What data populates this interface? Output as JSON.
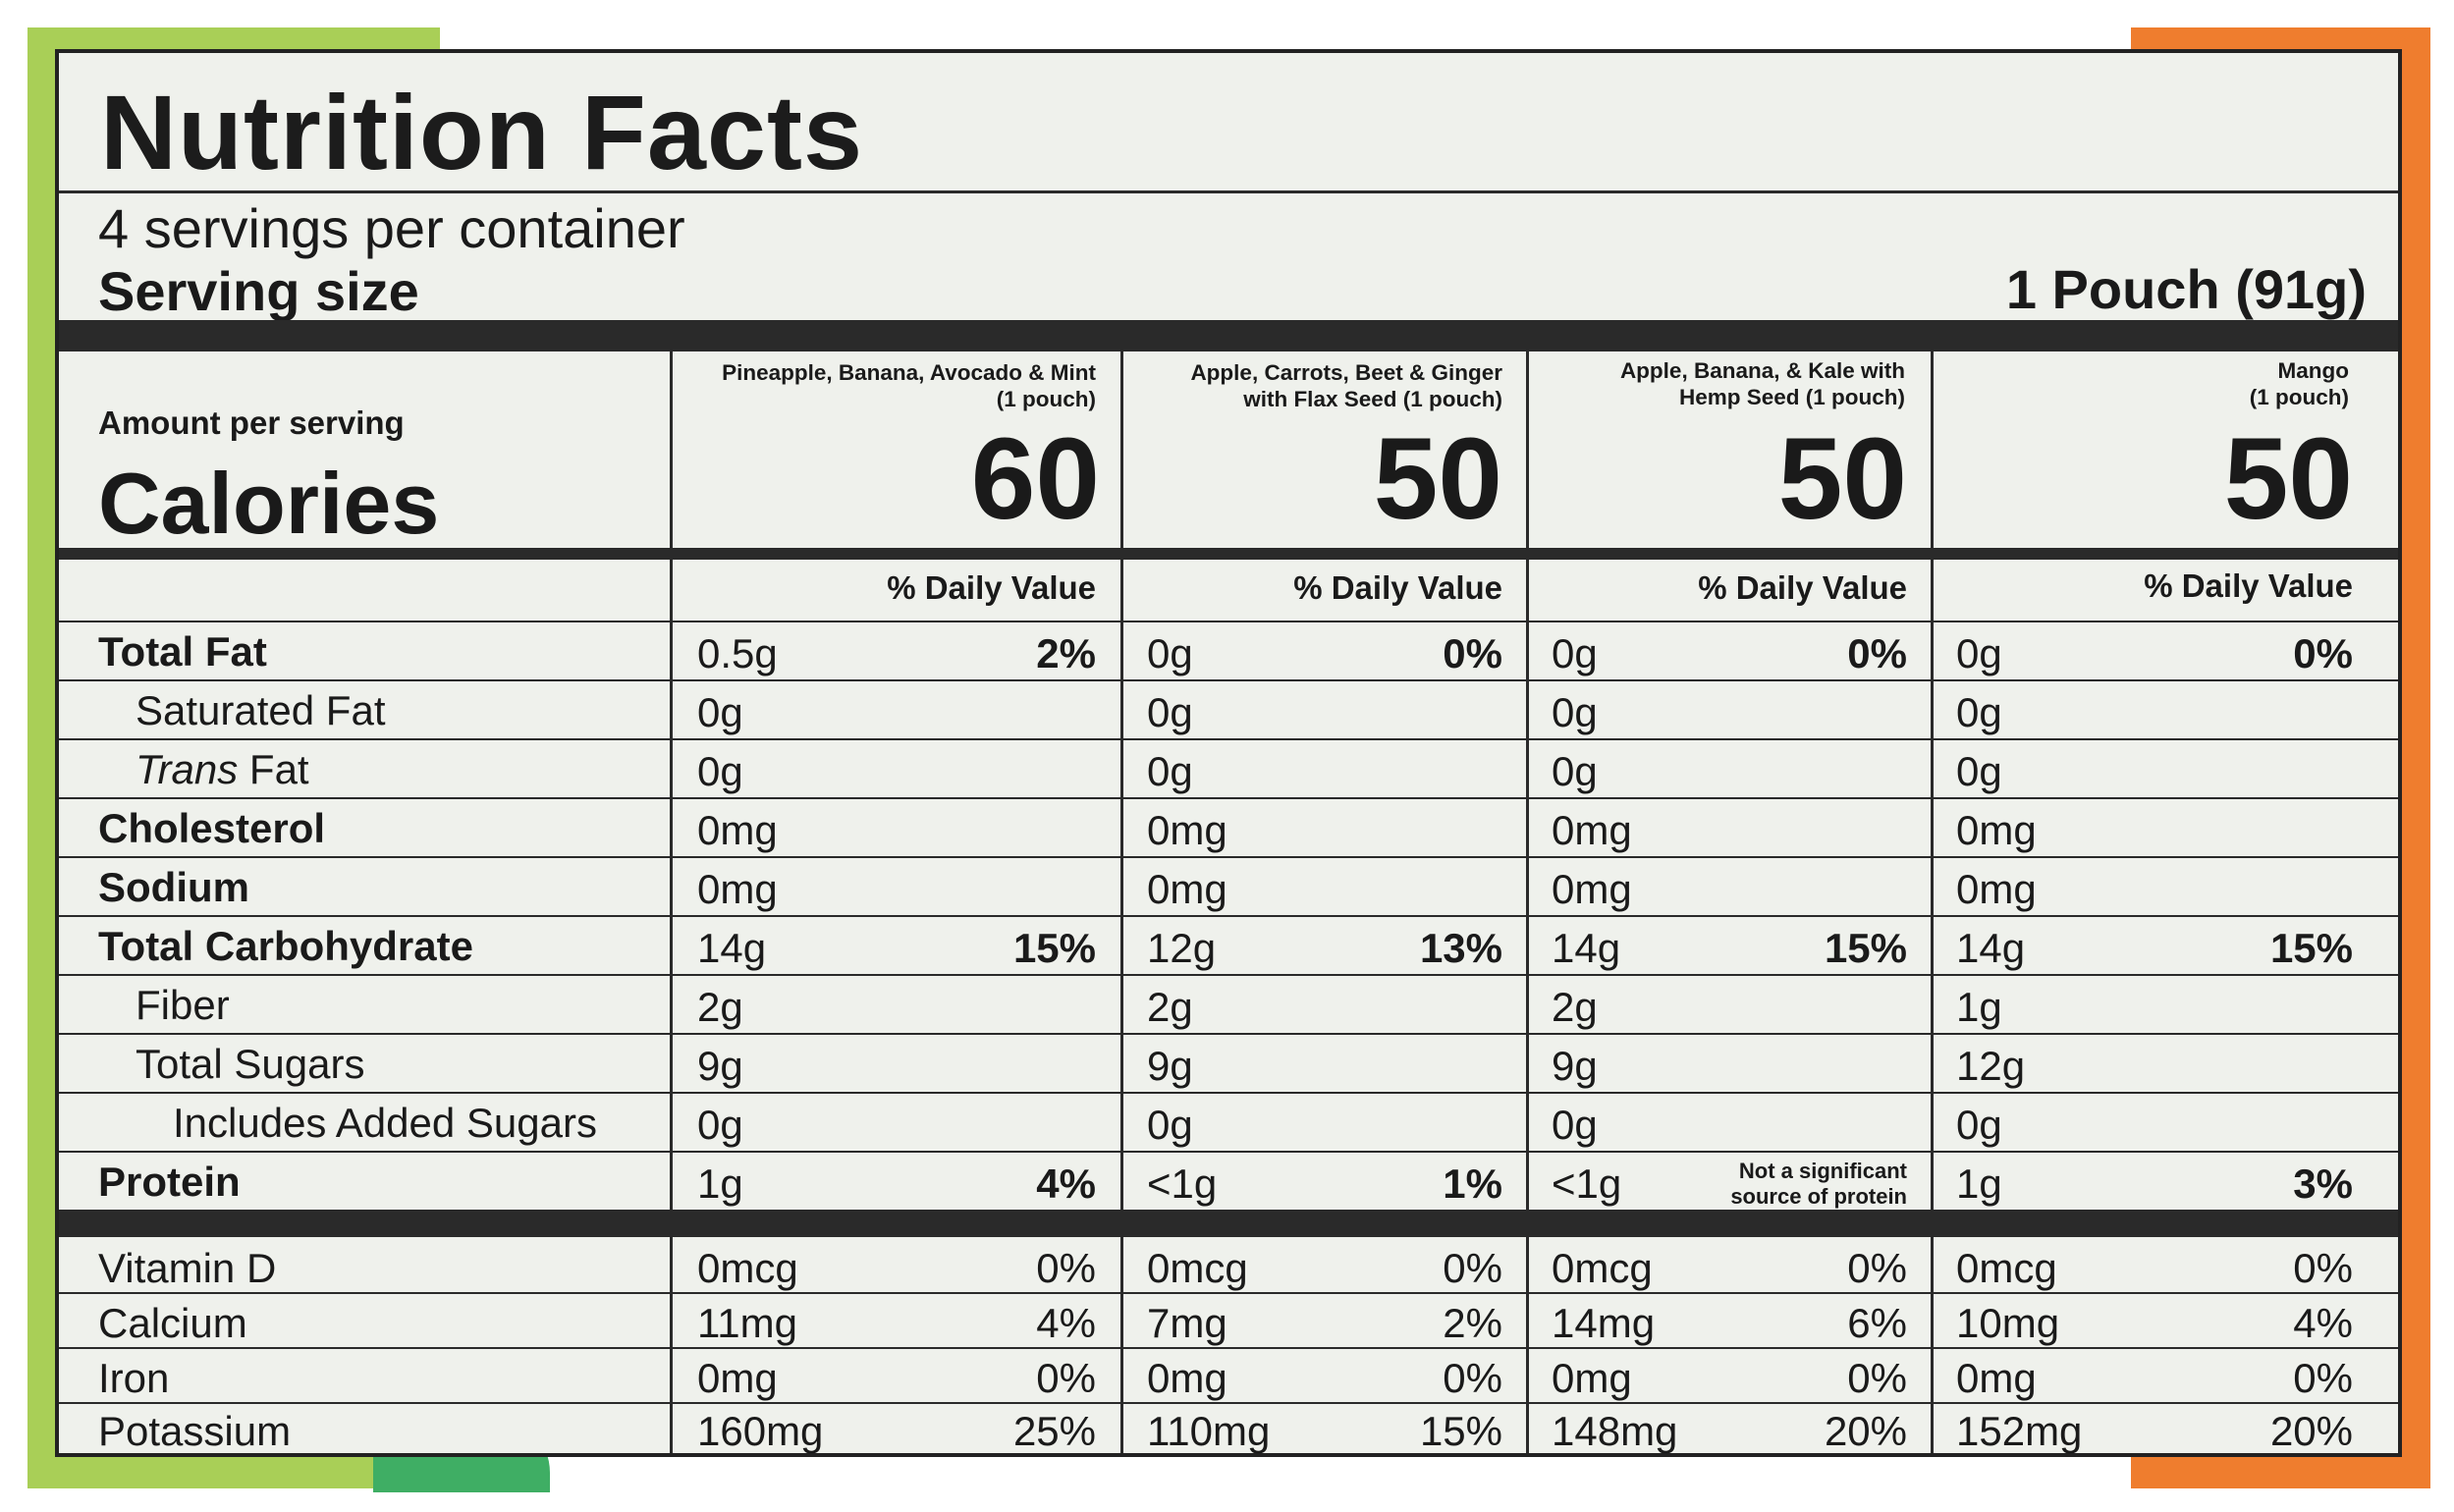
{
  "title": "Nutrition Facts",
  "servings_per_container": "4 servings per container",
  "serving_size_label": "Serving size",
  "serving_size_value": "1 Pouch (91g)",
  "amount_per_serving": "Amount per serving",
  "calories_label": "Calories",
  "dv_header": "% Daily Value",
  "products": [
    {
      "name_line1": "Pineapple, Banana, Avocado & Mint",
      "name_line2": "(1 pouch)",
      "calories": "60"
    },
    {
      "name_line1": "Apple, Carrots, Beet & Ginger",
      "name_line2": "with Flax Seed (1 pouch)",
      "calories": "50"
    },
    {
      "name_line1": "Apple, Banana, & Kale with",
      "name_line2": "Hemp Seed (1 pouch)",
      "calories": "50"
    },
    {
      "name_line1": "Mango",
      "name_line2": "(1 pouch)",
      "calories": "50"
    }
  ],
  "nutrients": [
    {
      "label": "Total Fat",
      "values": [
        [
          "0.5g",
          "2%"
        ],
        [
          "0g",
          "0%"
        ],
        [
          "0g",
          "0%"
        ],
        [
          "0g",
          "0%"
        ]
      ]
    },
    {
      "label": "Saturated Fat",
      "values": [
        [
          "0g",
          ""
        ],
        [
          "0g",
          ""
        ],
        [
          "0g",
          ""
        ],
        [
          "0g",
          ""
        ]
      ]
    },
    {
      "label_italic": "Trans",
      "label": " Fat",
      "values": [
        [
          "0g",
          ""
        ],
        [
          "0g",
          ""
        ],
        [
          "0g",
          ""
        ],
        [
          "0g",
          ""
        ]
      ]
    },
    {
      "label": "Cholesterol",
      "values": [
        [
          "0mg",
          ""
        ],
        [
          "0mg",
          ""
        ],
        [
          "0mg",
          ""
        ],
        [
          "0mg",
          ""
        ]
      ]
    },
    {
      "label": "Sodium",
      "values": [
        [
          "0mg",
          ""
        ],
        [
          "0mg",
          ""
        ],
        [
          "0mg",
          ""
        ],
        [
          "0mg",
          ""
        ]
      ]
    },
    {
      "label": "Total Carbohydrate",
      "values": [
        [
          "14g",
          "15%"
        ],
        [
          "12g",
          "13%"
        ],
        [
          "14g",
          "15%"
        ],
        [
          "14g",
          "15%"
        ]
      ]
    },
    {
      "label": "Fiber",
      "values": [
        [
          "2g",
          ""
        ],
        [
          "2g",
          ""
        ],
        [
          "2g",
          ""
        ],
        [
          "1g",
          ""
        ]
      ]
    },
    {
      "label": "Total Sugars",
      "values": [
        [
          "9g",
          ""
        ],
        [
          "9g",
          ""
        ],
        [
          "9g",
          ""
        ],
        [
          "12g",
          ""
        ]
      ]
    },
    {
      "label": "Includes Added Sugars",
      "values": [
        [
          "0g",
          ""
        ],
        [
          "0g",
          ""
        ],
        [
          "0g",
          ""
        ],
        [
          "0g",
          ""
        ]
      ]
    },
    {
      "label": "Protein",
      "values": [
        [
          "1g",
          "4%"
        ],
        [
          "<1g",
          "1%"
        ],
        [
          "<1g",
          ""
        ],
        [
          "1g",
          "3%"
        ]
      ],
      "note_line1": "Not a significant",
      "note_line2": "source of protein"
    }
  ],
  "vitamins": [
    {
      "label": "Vitamin D",
      "values": [
        [
          "0mcg",
          "0%"
        ],
        [
          "0mcg",
          "0%"
        ],
        [
          "0mcg",
          "0%"
        ],
        [
          "0mcg",
          "0%"
        ]
      ]
    },
    {
      "label": "Calcium",
      "values": [
        [
          "11mg",
          "4%"
        ],
        [
          "7mg",
          "2%"
        ],
        [
          "14mg",
          "6%"
        ],
        [
          "10mg",
          "4%"
        ]
      ]
    },
    {
      "label": "Iron",
      "values": [
        [
          "0mg",
          "0%"
        ],
        [
          "0mg",
          "0%"
        ],
        [
          "0mg",
          "0%"
        ],
        [
          "0mg",
          "0%"
        ]
      ]
    },
    {
      "label": "Potassium",
      "values": [
        [
          "160mg",
          "25%"
        ],
        [
          "110mg",
          "15%"
        ],
        [
          "148mg",
          "20%"
        ],
        [
          "152mg",
          "20%"
        ]
      ]
    }
  ],
  "colors": {
    "left_band": "#a9cf57",
    "right_band": "#ef7d2e",
    "label_bg": "#eff1ec",
    "ink": "#1a1a1a"
  }
}
